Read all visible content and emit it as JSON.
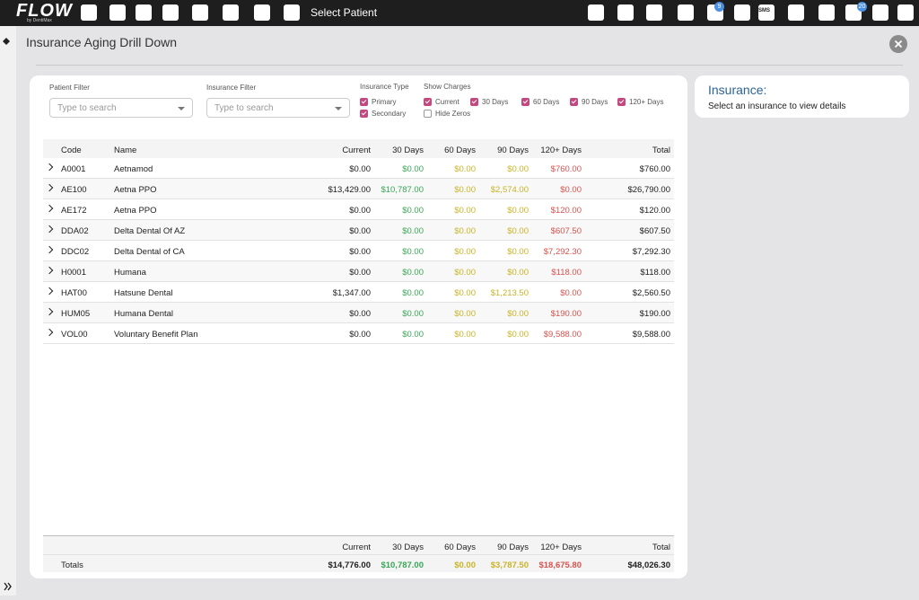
{
  "navbar": {
    "logo": "FLOW",
    "logo_sub": "by DentiMax",
    "select_patient": "Select Patient",
    "sms_icon": "SMS",
    "badges": [
      "9",
      "20"
    ]
  },
  "page": {
    "title": "Insurance Aging Drill Down"
  },
  "filters": {
    "patient_filter": {
      "label": "Patient Filter",
      "placeholder": "Type to search"
    },
    "insurance_filter": {
      "label": "Insurance Filter",
      "placeholder": "Type to search"
    },
    "insurance_type": {
      "label": "Insurance Type",
      "options": [
        {
          "label": "Primary",
          "checked": true
        },
        {
          "label": "Secondary",
          "checked": true
        }
      ]
    },
    "show_charges": {
      "label": "Show Charges",
      "options": [
        {
          "label": "Current",
          "checked": true
        },
        {
          "label": "30 Days",
          "checked": true
        },
        {
          "label": "60 Days",
          "checked": true
        },
        {
          "label": "90 Days",
          "checked": true
        },
        {
          "label": "120+ Days",
          "checked": true
        },
        {
          "label": "Hide Zeros",
          "checked": false
        }
      ]
    }
  },
  "table": {
    "columns": [
      "Code",
      "Name",
      "Current",
      "30 Days",
      "60 Days",
      "90 Days",
      "120+ Days",
      "Total"
    ],
    "rows": [
      [
        "A0001",
        "Aetnamod",
        "$0.00",
        "$0.00",
        "$0.00",
        "$0.00",
        "$760.00",
        "$760.00"
      ],
      [
        "AE100",
        "Aetna PPO",
        "$13,429.00",
        "$10,787.00",
        "$0.00",
        "$2,574.00",
        "$0.00",
        "$26,790.00"
      ],
      [
        "AE172",
        "Aetna PPO",
        "$0.00",
        "$0.00",
        "$0.00",
        "$0.00",
        "$120.00",
        "$120.00"
      ],
      [
        "DDA02",
        "Delta Dental Of AZ",
        "$0.00",
        "$0.00",
        "$0.00",
        "$0.00",
        "$607.50",
        "$607.50"
      ],
      [
        "DDC02",
        "Delta Dental of CA",
        "$0.00",
        "$0.00",
        "$0.00",
        "$0.00",
        "$7,292.30",
        "$7,292.30"
      ],
      [
        "H0001",
        "Humana",
        "$0.00",
        "$0.00",
        "$0.00",
        "$0.00",
        "$118.00",
        "$118.00"
      ],
      [
        "HAT00",
        "Hatsune Dental",
        "$1,347.00",
        "$0.00",
        "$0.00",
        "$1,213.50",
        "$0.00",
        "$2,560.50"
      ],
      [
        "HUM05",
        "Humana Dental",
        "$0.00",
        "$0.00",
        "$0.00",
        "$0.00",
        "$190.00",
        "$190.00"
      ],
      [
        "VOL00",
        "Voluntary Benefit Plan",
        "$0.00",
        "$0.00",
        "$0.00",
        "$0.00",
        "$9,588.00",
        "$9,588.00"
      ]
    ],
    "footer": {
      "label": "Totals",
      "values": [
        "$14,776.00",
        "$10,787.00",
        "$0.00",
        "$3,787.50",
        "$18,675.80",
        "$48,026.30"
      ]
    }
  },
  "side_panel": {
    "title": "Insurance:",
    "text": "Select an insurance to view details"
  }
}
